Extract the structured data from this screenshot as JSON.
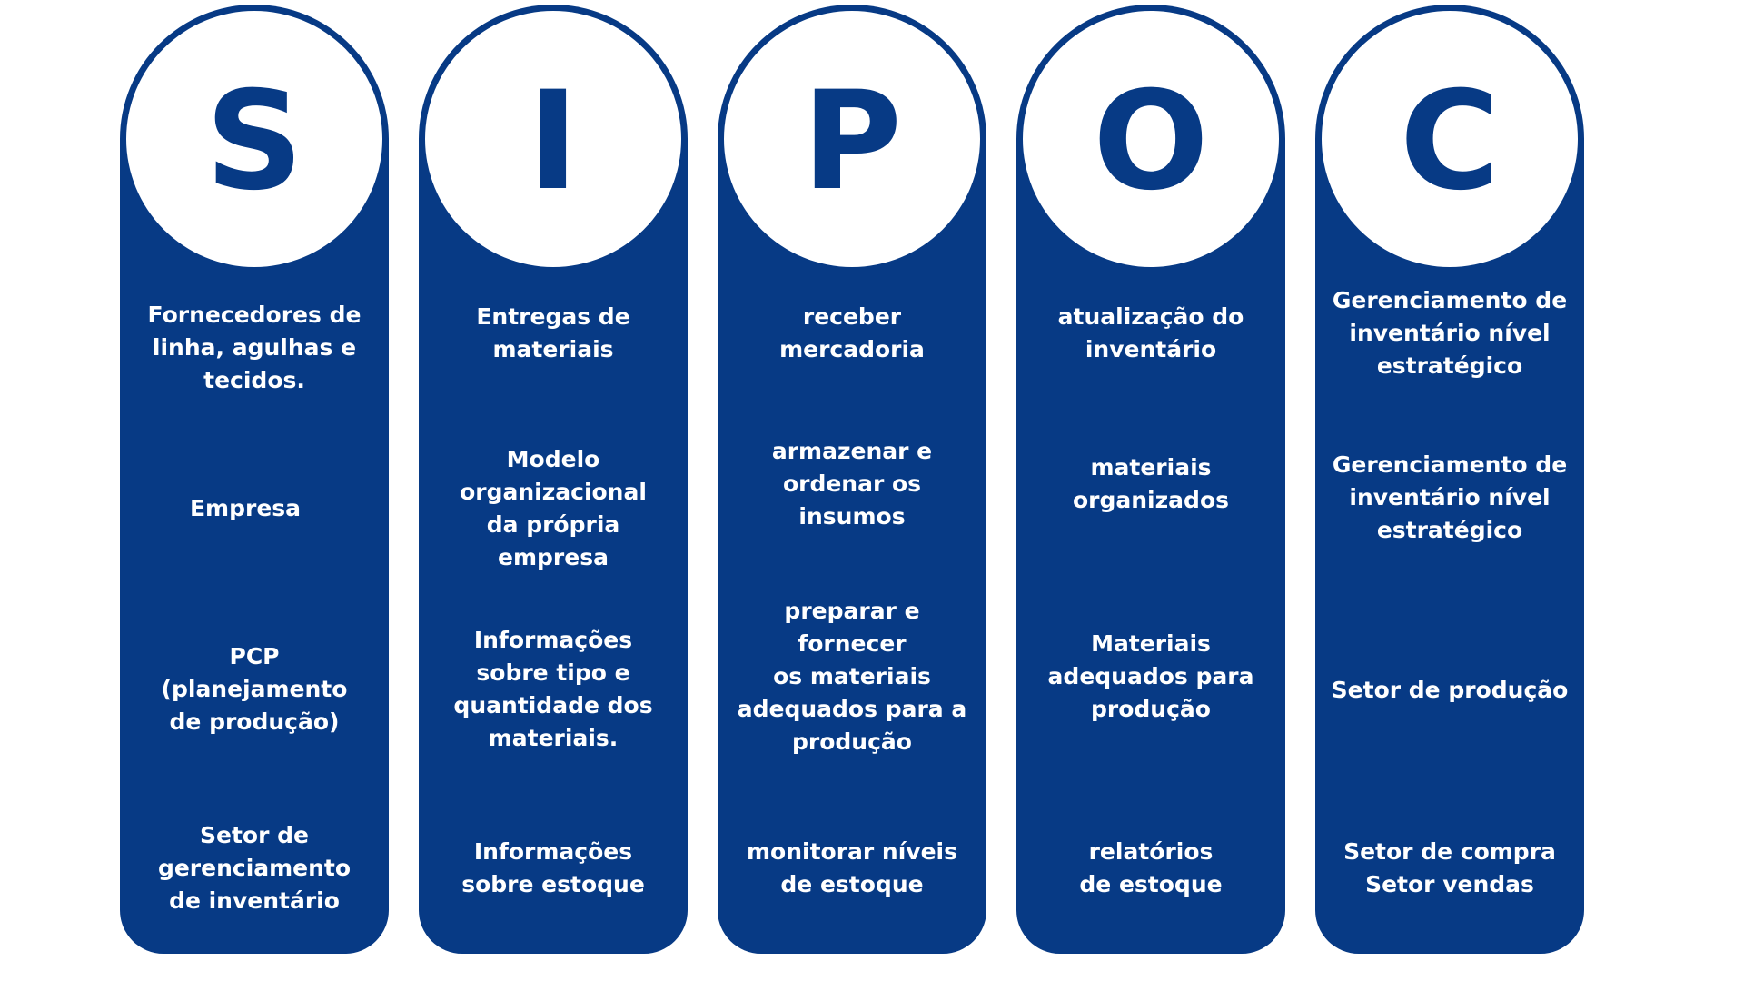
{
  "diagram": {
    "columns": [
      {
        "letter": "S",
        "items": [
          "Fornecedores de\nlinha, agulhas e\ntecidos.",
          "Empresa",
          "PCP\n(planejamento\nde produção)",
          "Setor de\ngerenciamento\nde inventário"
        ]
      },
      {
        "letter": "I",
        "items": [
          "Entregas de\nmateriais",
          "Modelo\norganizacional\nda própria\nempresa",
          "Informações\nsobre tipo e\nquantidade dos\nmateriais.",
          "Informações\nsobre estoque"
        ]
      },
      {
        "letter": "P",
        "items": [
          "receber mercadoria",
          "armazenar e\nordenar os\ninsumos",
          "preparar e fornecer\nos materiais\nadequados para a\nprodução",
          "monitorar níveis\nde estoque"
        ]
      },
      {
        "letter": "O",
        "items": [
          "atualização do\ninventário",
          "materiais\norganizados",
          "Materiais\nadequados para\nprodução",
          "relatórios\nde estoque"
        ]
      },
      {
        "letter": "C",
        "items": [
          "Gerenciamento de\ninventário nível\nestratégico",
          "Gerenciamento de\ninventário nível\nestratégico",
          "Setor de produção",
          "Setor de compra\nSetor vendas"
        ]
      }
    ]
  },
  "colors": {
    "column_fill": "#073a85",
    "circle_fill": "#ffffff",
    "text": "#ffffff"
  }
}
